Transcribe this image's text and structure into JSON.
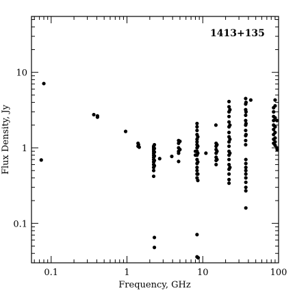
{
  "chart_data": {
    "type": "scatter",
    "title": "",
    "annotation": "1413+135",
    "xlabel": "Frequency, GHz",
    "ylabel": "Flux Density, Jy",
    "x_scale": "log",
    "y_scale": "log",
    "xlim": [
      0.055,
      100
    ],
    "ylim": [
      0.03,
      55
    ],
    "grid": false,
    "marker_color": "#000000",
    "x_ticks": [
      {
        "value": 0.1,
        "label": "0.1"
      },
      {
        "value": 1,
        "label": "1"
      },
      {
        "value": 10,
        "label": "10"
      },
      {
        "value": 100,
        "label": "100"
      }
    ],
    "y_ticks": [
      {
        "value": 0.1,
        "label": "0.1"
      },
      {
        "value": 1,
        "label": "1"
      },
      {
        "value": 10,
        "label": "10"
      }
    ],
    "points": [
      [
        0.074,
        0.69
      ],
      [
        0.08,
        7.1
      ],
      [
        0.365,
        2.75
      ],
      [
        0.408,
        2.55
      ],
      [
        0.408,
        2.65
      ],
      [
        0.96,
        1.65
      ],
      [
        1.4,
        1.05
      ],
      [
        1.4,
        1.15
      ],
      [
        1.42,
        1.1
      ],
      [
        1.45,
        1.02
      ],
      [
        2.25,
        1.05
      ],
      [
        2.25,
        1.0
      ],
      [
        2.25,
        0.95
      ],
      [
        2.25,
        0.9
      ],
      [
        2.25,
        0.85
      ],
      [
        2.25,
        0.8
      ],
      [
        2.25,
        0.75
      ],
      [
        2.25,
        0.7
      ],
      [
        2.25,
        0.65
      ],
      [
        2.25,
        0.6
      ],
      [
        2.25,
        0.55
      ],
      [
        2.25,
        0.5
      ],
      [
        2.25,
        0.42
      ],
      [
        2.3,
        1.1
      ],
      [
        2.3,
        0.98
      ],
      [
        2.3,
        0.88
      ],
      [
        2.3,
        0.78
      ],
      [
        2.3,
        0.68
      ],
      [
        2.3,
        0.58
      ],
      [
        2.3,
        0.065
      ],
      [
        2.3,
        0.048
      ],
      [
        2.7,
        0.72
      ],
      [
        3.9,
        0.77
      ],
      [
        4.8,
        1.25
      ],
      [
        4.8,
        1.15
      ],
      [
        4.8,
        1.0
      ],
      [
        4.8,
        0.9
      ],
      [
        4.8,
        0.85
      ],
      [
        4.8,
        0.66
      ],
      [
        5.0,
        1.22
      ],
      [
        5.0,
        0.95
      ],
      [
        8.0,
        0.9
      ],
      [
        8.0,
        0.8
      ],
      [
        8.4,
        2.1
      ],
      [
        8.4,
        1.9
      ],
      [
        8.4,
        1.7
      ],
      [
        8.4,
        1.5
      ],
      [
        8.4,
        1.3
      ],
      [
        8.4,
        1.2
      ],
      [
        8.4,
        1.1
      ],
      [
        8.4,
        1.0
      ],
      [
        8.4,
        0.9
      ],
      [
        8.4,
        0.8
      ],
      [
        8.4,
        0.7
      ],
      [
        8.4,
        0.62
      ],
      [
        8.4,
        0.55
      ],
      [
        8.4,
        0.5
      ],
      [
        8.4,
        0.45
      ],
      [
        8.4,
        0.4
      ],
      [
        8.6,
        1.4
      ],
      [
        8.6,
        1.05
      ],
      [
        8.6,
        0.85
      ],
      [
        8.6,
        0.65
      ],
      [
        8.6,
        0.45
      ],
      [
        8.6,
        0.37
      ],
      [
        8.4,
        0.071
      ],
      [
        8.4,
        0.036
      ],
      [
        8.7,
        0.035
      ],
      [
        11.0,
        0.85
      ],
      [
        14.9,
        2.0
      ],
      [
        15.0,
        1.15
      ],
      [
        15.0,
        1.05
      ],
      [
        15.0,
        0.95
      ],
      [
        15.0,
        0.85
      ],
      [
        15.0,
        0.75
      ],
      [
        15.0,
        0.68
      ],
      [
        15.0,
        0.6
      ],
      [
        15.4,
        1.1
      ],
      [
        15.4,
        0.9
      ],
      [
        15.4,
        0.7
      ],
      [
        22.2,
        4.1
      ],
      [
        22.2,
        3.5
      ],
      [
        22.2,
        3.0
      ],
      [
        22.2,
        2.6
      ],
      [
        22.2,
        2.2
      ],
      [
        22.2,
        1.9
      ],
      [
        22.2,
        1.6
      ],
      [
        22.2,
        1.4
      ],
      [
        22.2,
        1.2
      ],
      [
        22.2,
        1.05
      ],
      [
        22.2,
        0.9
      ],
      [
        22.2,
        0.8
      ],
      [
        22.2,
        0.7
      ],
      [
        22.2,
        0.6
      ],
      [
        22.2,
        0.52
      ],
      [
        22.2,
        0.45
      ],
      [
        22.2,
        0.38
      ],
      [
        22.2,
        0.34
      ],
      [
        22.8,
        3.2
      ],
      [
        22.8,
        2.0
      ],
      [
        22.8,
        1.3
      ],
      [
        22.8,
        0.85
      ],
      [
        22.8,
        0.55
      ],
      [
        36.8,
        4.5
      ],
      [
        36.8,
        3.8
      ],
      [
        36.8,
        3.2
      ],
      [
        36.8,
        2.7
      ],
      [
        36.8,
        2.3
      ],
      [
        36.8,
        2.0
      ],
      [
        36.8,
        1.7
      ],
      [
        36.8,
        1.45
      ],
      [
        36.8,
        1.25
      ],
      [
        36.8,
        1.1
      ],
      [
        37.2,
        4.0
      ],
      [
        37.2,
        3.0
      ],
      [
        37.2,
        2.1
      ],
      [
        37.2,
        1.5
      ],
      [
        37.0,
        0.7
      ],
      [
        37.0,
        0.62
      ],
      [
        37.0,
        0.55
      ],
      [
        37.0,
        0.5
      ],
      [
        37.0,
        0.45
      ],
      [
        37.0,
        0.4
      ],
      [
        37.0,
        0.35
      ],
      [
        37.0,
        0.3
      ],
      [
        37.0,
        0.27
      ],
      [
        37.0,
        0.16
      ],
      [
        43.0,
        4.3
      ],
      [
        86.0,
        3.4
      ],
      [
        86.0,
        3.0
      ],
      [
        86.0,
        2.6
      ],
      [
        86.0,
        2.3
      ],
      [
        86.0,
        2.0
      ],
      [
        86.0,
        1.75
      ],
      [
        86.0,
        1.5
      ],
      [
        86.0,
        1.3
      ],
      [
        86.0,
        1.15
      ],
      [
        90.0,
        4.3
      ],
      [
        90.0,
        3.6
      ],
      [
        90.0,
        2.5
      ],
      [
        90.0,
        1.9
      ],
      [
        90.0,
        1.6
      ],
      [
        90.0,
        1.35
      ],
      [
        90.0,
        1.2
      ],
      [
        90.0,
        1.08
      ],
      [
        95.0,
        2.3
      ],
      [
        95.0,
        1.0
      ],
      [
        96.0,
        0.95
      ]
    ]
  }
}
